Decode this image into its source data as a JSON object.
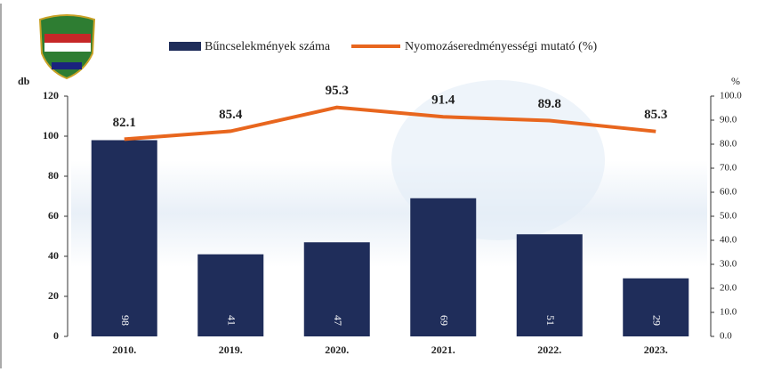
{
  "chart_data": {
    "type": "bar_line",
    "categories": [
      "2010.",
      "2019.",
      "2020.",
      "2021.",
      "2022.",
      "2023."
    ],
    "series": [
      {
        "name": "Bűncselekmények száma",
        "color": "#1f2d5a",
        "type": "bar",
        "values": [
          98,
          41,
          47,
          69,
          51,
          29
        ]
      },
      {
        "name": "Nyomozáseredményességi mutató (%)",
        "color": "#e8661e",
        "type": "line",
        "axis": "y2",
        "values": [
          82.1,
          85.4,
          95.3,
          91.4,
          89.8,
          85.3
        ]
      }
    ],
    "y_label": "db",
    "y2_label": "%",
    "ylim": [
      0,
      120
    ],
    "yticks": [
      0,
      20,
      40,
      60,
      80,
      100,
      120
    ],
    "y2lim": [
      0,
      100
    ],
    "y2ticks": [
      {
        "value": 0,
        "label": "0.0"
      },
      {
        "value": 10,
        "label": "10.0"
      },
      {
        "value": 20,
        "label": "20.0"
      },
      {
        "value": 30,
        "label": "30.0"
      },
      {
        "value": 40,
        "label": "40.0"
      },
      {
        "value": 50,
        "label": "50.0"
      },
      {
        "value": 60,
        "label": "60.0"
      },
      {
        "value": 70,
        "label": "70.0"
      },
      {
        "value": 80,
        "label": "80.0"
      },
      {
        "value": 90,
        "label": "90.0"
      },
      {
        "value": 100,
        "label": "100.0"
      }
    ]
  }
}
